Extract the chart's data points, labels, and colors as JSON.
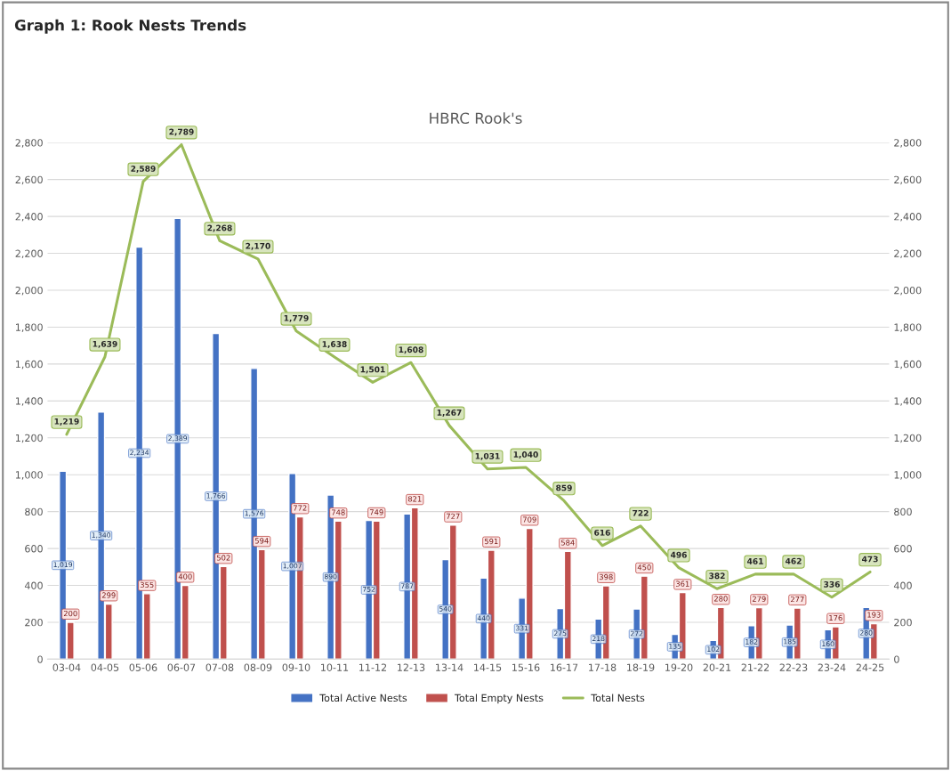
{
  "chart_data": {
    "type": "bar",
    "title": "Graph 1: Rook Nests Trends",
    "subtitle": "HBRC Rook's",
    "categories": [
      "03-04",
      "04-05",
      "05-06",
      "06-07",
      "07-08",
      "08-09",
      "09-10",
      "10-11",
      "11-12",
      "12-13",
      "13-14",
      "14-15",
      "15-16",
      "16-17",
      "17-18",
      "18-19",
      "19-20",
      "20-21",
      "21-22",
      "22-23",
      "23-24",
      "24-25"
    ],
    "series": [
      {
        "name": "Total Active Nests",
        "color": "#4472c4",
        "values": [
          1019,
          1340,
          2234,
          2389,
          1766,
          1576,
          1007,
          890,
          752,
          787,
          540,
          440,
          331,
          275,
          218,
          272,
          135,
          102,
          182,
          185,
          160,
          280
        ],
        "value_labels": [
          "1,019",
          "1,340",
          "2,234",
          "2,389",
          "1,766",
          "1,576",
          "1,007",
          "890",
          "752",
          "787",
          "540",
          "440",
          "331",
          "275",
          "218",
          "272",
          "135",
          "102",
          "182",
          "185",
          "160",
          "280"
        ]
      },
      {
        "name": "Total Empty Nests",
        "color": "#c0504d",
        "values": [
          200,
          299,
          355,
          400,
          502,
          594,
          772,
          748,
          749,
          821,
          727,
          591,
          709,
          584,
          398,
          450,
          361,
          280,
          279,
          277,
          176,
          193
        ],
        "value_labels": [
          "200",
          "299",
          "355",
          "400",
          "502",
          "594",
          "772",
          "748",
          "749",
          "821",
          "727",
          "591",
          "709",
          "584",
          "398",
          "450",
          "361",
          "280",
          "279",
          "277",
          "176",
          "193"
        ]
      },
      {
        "name": "Total Nests",
        "type": "line",
        "color": "#9bbb59",
        "values": [
          1219,
          1639,
          2589,
          2789,
          2268,
          2170,
          1779,
          1638,
          1501,
          1608,
          1267,
          1031,
          1040,
          859,
          616,
          722,
          496,
          382,
          461,
          462,
          336,
          473
        ],
        "value_labels": [
          "1,219",
          "1,639",
          "2,589",
          "2,789",
          "2,268",
          "2,170",
          "1,779",
          "1,638",
          "1,501",
          "1,608",
          "1,267",
          "1,031",
          "1,040",
          "859",
          "616",
          "722",
          "496",
          "382",
          "461",
          "462",
          "336",
          "473"
        ]
      }
    ],
    "ylim": [
      0,
      2800
    ],
    "yticks": [
      0,
      200,
      400,
      600,
      800,
      {
        "value": 1000,
        "label": "1,000"
      },
      {
        "value": 1200,
        "label": "1,200"
      },
      {
        "value": 1400,
        "label": "1,400"
      },
      {
        "value": 1600,
        "label": "1,600"
      },
      {
        "value": 1800,
        "label": "1,800"
      },
      {
        "value": 2000,
        "label": "2,000"
      },
      {
        "value": 2200,
        "label": "2,200"
      },
      {
        "value": 2400,
        "label": "2,400"
      },
      {
        "value": 2600,
        "label": "2,600"
      },
      {
        "value": 2800,
        "label": "2,800"
      }
    ],
    "y2lim": [
      0,
      2800
    ],
    "y2ticks": [
      0,
      200,
      400,
      600,
      800,
      {
        "value": 1000,
        "label": "1,000"
      },
      {
        "value": 1200,
        "label": "1,200"
      },
      {
        "value": 1400,
        "label": "1,400"
      },
      {
        "value": 1600,
        "label": "1,600"
      },
      {
        "value": 1800,
        "label": "1,800"
      },
      {
        "value": 2000,
        "label": "2,000"
      },
      {
        "value": 2200,
        "label": "2,200"
      },
      {
        "value": 2400,
        "label": "2,400"
      },
      {
        "value": 2600,
        "label": "2,600"
      },
      {
        "value": 2800,
        "label": "2,800"
      }
    ],
    "grid": "y",
    "legend": "bottom",
    "line_style": "solid"
  }
}
